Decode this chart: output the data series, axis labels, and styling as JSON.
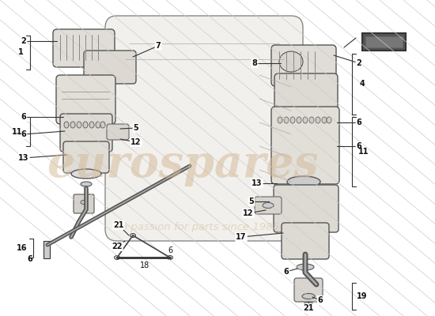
{
  "bg_color": "#ffffff",
  "line_color": "#333333",
  "fill_color": "#f0f0f0",
  "watermark_color": "#d4b896",
  "watermark_alpha": 0.5,
  "label_fontsize": 7.0,
  "label_color": "#111111",
  "diag_line_color": "#cccccc",
  "diag_line_alpha": 0.6
}
